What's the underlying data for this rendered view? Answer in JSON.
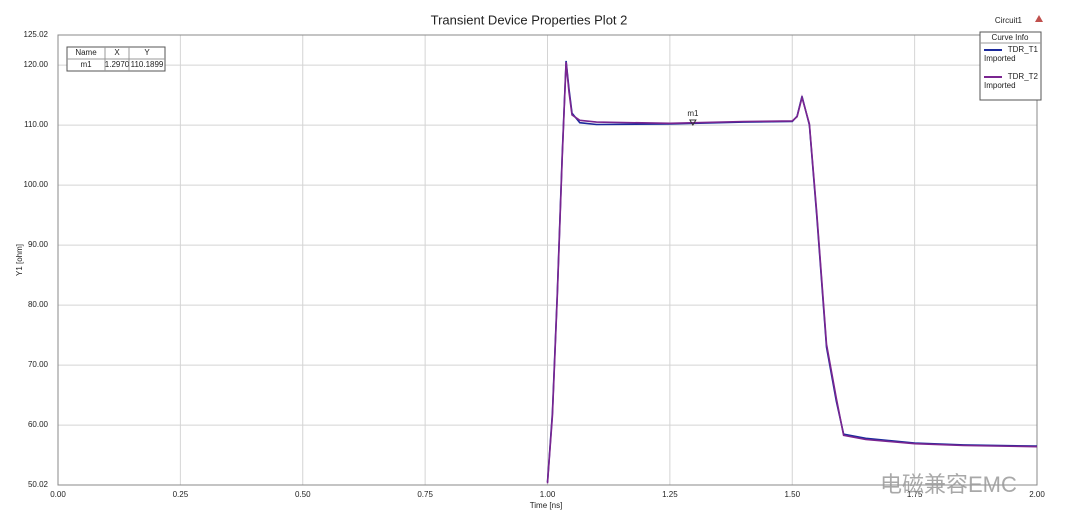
{
  "chart_data": {
    "type": "line",
    "title": "Transient Device Properties Plot 2",
    "design": "Circuit1",
    "x_label": "Time [ns]",
    "y_label": "Y1 [ohm]",
    "xlim": [
      0,
      2
    ],
    "ylim": [
      50.02,
      125.02
    ],
    "xticks": [
      {
        "value": 0,
        "label": "0.00"
      },
      {
        "value": 0.25,
        "label": "0.25"
      },
      {
        "value": 0.5,
        "label": "0.50"
      },
      {
        "value": 0.75,
        "label": "0.75"
      },
      {
        "value": 1,
        "label": "1.00"
      },
      {
        "value": 1.25,
        "label": "1.25"
      },
      {
        "value": 1.5,
        "label": "1.50"
      },
      {
        "value": 1.75,
        "label": "1.75"
      },
      {
        "value": 2,
        "label": "2.00"
      }
    ],
    "yticks": [
      50.02,
      {
        "value": 60,
        "label": "60.00"
      },
      {
        "value": 70,
        "label": "70.00"
      },
      {
        "value": 80,
        "label": "80.00"
      },
      {
        "value": 90,
        "label": "90.00"
      },
      {
        "value": 100,
        "label": "100.00"
      },
      {
        "value": 110,
        "label": "110.00"
      },
      {
        "value": 120,
        "label": "120.00"
      },
      125.02
    ],
    "grid": true,
    "legend_title": "Curve Info",
    "legend_position": "upper right",
    "series": [
      {
        "name": "TDR_T1",
        "note": "Imported",
        "color": "#1c2a9c",
        "x": [
          1.0,
          1.01,
          1.02,
          1.03,
          1.038,
          1.044,
          1.05,
          1.066,
          1.1,
          1.25,
          1.4,
          1.5,
          1.51,
          1.52,
          1.535,
          1.55,
          1.57,
          1.59,
          1.605,
          1.65,
          1.75,
          1.85,
          2.0
        ],
        "values": [
          50.5,
          62,
          82,
          105,
          120.7,
          116,
          112,
          110.4,
          110.1,
          110.2,
          110.5,
          110.6,
          111.5,
          114.8,
          110,
          95,
          73,
          64,
          58.5,
          57.8,
          57.0,
          56.7,
          56.5
        ]
      },
      {
        "name": "TDR_T2",
        "note": "Imported",
        "color": "#7a2590",
        "x": [
          1.0,
          1.01,
          1.02,
          1.03,
          1.038,
          1.044,
          1.05,
          1.066,
          1.1,
          1.25,
          1.4,
          1.5,
          1.51,
          1.52,
          1.535,
          1.55,
          1.57,
          1.59,
          1.605,
          1.65,
          1.75,
          1.85,
          2.0
        ],
        "values": [
          50.3,
          61.5,
          81.5,
          104.5,
          120.5,
          115.5,
          111.7,
          110.8,
          110.5,
          110.3,
          110.6,
          110.7,
          111.4,
          114.6,
          110.2,
          95.5,
          73.5,
          64.5,
          58.3,
          57.6,
          56.9,
          56.6,
          56.4
        ]
      }
    ],
    "marker_table": {
      "headers": [
        "Name",
        "X",
        "Y"
      ],
      "row": [
        "m1",
        "1.2970",
        "110.1899"
      ]
    },
    "marker": {
      "name": "m1",
      "x": 1.297,
      "y": 110.1899
    },
    "watermark": "电磁兼容EMC"
  }
}
